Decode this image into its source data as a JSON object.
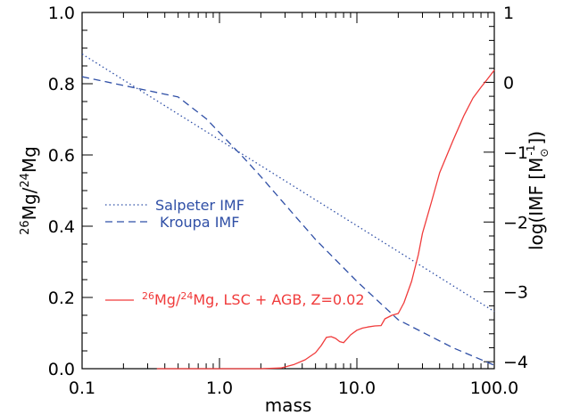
{
  "chart_data": {
    "type": "line",
    "xlabel": "mass",
    "x_scale": "log",
    "xlim": [
      0.1,
      100.0
    ],
    "x_ticks": [
      0.1,
      1.0,
      10.0,
      100.0
    ],
    "x_tick_labels": [
      "0.1",
      "1.0",
      "10.0",
      "100.0"
    ],
    "y_left": {
      "label_parts": [
        "",
        "26",
        "Mg/",
        "24",
        "Mg"
      ],
      "lim": [
        0.0,
        1.0
      ],
      "ticks": [
        0.0,
        0.2,
        0.4,
        0.6,
        0.8,
        1.0
      ],
      "tick_labels": [
        "0.0",
        "0.2",
        "0.4",
        "0.6",
        "0.8",
        "1.0"
      ]
    },
    "y_right": {
      "label_parts": [
        "log(IMF [M",
        "-1",
        "])"
      ],
      "label_subscript": "⊙",
      "lim": [
        -4.1,
        1.0
      ],
      "ticks": [
        1,
        0,
        -1,
        -2,
        -3,
        -4
      ],
      "tick_labels": [
        "1",
        "0",
        "−1",
        "−2",
        "−3",
        "−4"
      ]
    },
    "series": [
      {
        "name": "Salpeter IMF",
        "axis": "right",
        "color": "#2f4fa6",
        "style": "dotted",
        "x": [
          0.1,
          100.0
        ],
        "y": [
          0.405,
          -3.282
        ]
      },
      {
        "name": "Kroupa IMF",
        "axis": "right",
        "color": "#2f4fa6",
        "style": "dashed",
        "x": [
          0.1,
          0.5,
          0.8,
          1.0,
          1.5,
          2.0,
          3.0,
          5.0,
          10.0,
          20.0,
          50.0,
          100.0
        ],
        "y": [
          0.08,
          -0.21,
          -0.52,
          -0.72,
          -1.08,
          -1.35,
          -1.75,
          -2.25,
          -2.85,
          -3.4,
          -3.8,
          -4.05
        ]
      },
      {
        "name_parts": [
          "26",
          "Mg/",
          "24",
          "Mg, LSC + AGB, Z=0.02"
        ],
        "axis": "left",
        "color": "#f03b3b",
        "style": "solid",
        "x": [
          0.35,
          2.0,
          2.8,
          3.5,
          4.2,
          5.0,
          5.5,
          6.0,
          6.5,
          7.0,
          7.5,
          8.0,
          9.0,
          10.0,
          11.0,
          12.0,
          13.5,
          15.0,
          16.0,
          18.0,
          20.0,
          22.0,
          25.0,
          28.0,
          30.0,
          35.0,
          40.0,
          50.0,
          60.0,
          70.0,
          80.0,
          90.0,
          100.0
        ],
        "y": [
          0.0,
          0.0,
          0.002,
          0.012,
          0.025,
          0.045,
          0.065,
          0.088,
          0.09,
          0.085,
          0.076,
          0.073,
          0.095,
          0.108,
          0.114,
          0.117,
          0.12,
          0.121,
          0.14,
          0.15,
          0.155,
          0.185,
          0.245,
          0.32,
          0.38,
          0.47,
          0.55,
          0.64,
          0.71,
          0.76,
          0.79,
          0.815,
          0.838
        ]
      }
    ],
    "legend": {
      "placement": "inside-left",
      "entries": [
        {
          "label": "Salpeter IMF",
          "color": "#2f4fa6",
          "style": "dotted"
        },
        {
          "label": "Kroupa IMF",
          "color": "#2f4fa6",
          "style": "dashed"
        }
      ]
    },
    "grid": false
  }
}
